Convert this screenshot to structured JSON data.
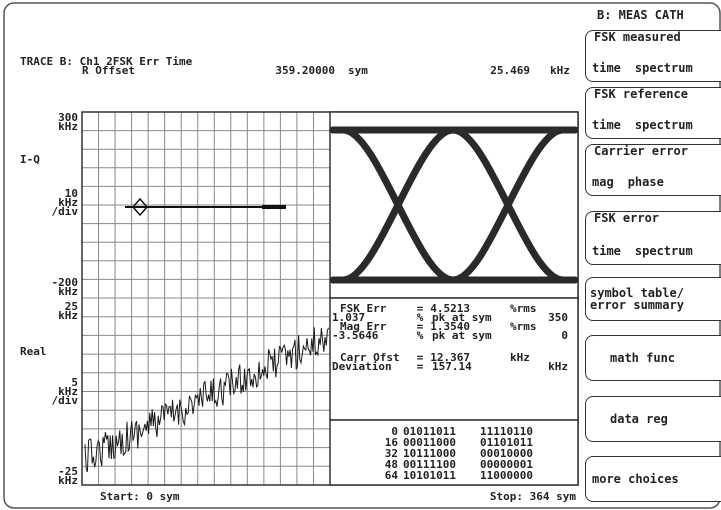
{
  "trace": {
    "header": "TRACE B: Ch1 2FSK Err Time",
    "marker_label": "R Offset",
    "marker_x": "359.20000",
    "marker_x_unit": "sym",
    "marker_y": "25.469",
    "marker_y_unit": "kHz"
  },
  "upper_axis": {
    "top": "300",
    "top_unit": "kHz",
    "name": "I-Q",
    "scale": "10",
    "scale_unit": "kHz",
    "scale_per": "/div",
    "bottom": "-200",
    "bottom_unit": "kHz"
  },
  "lower_axis": {
    "top": "25",
    "top_unit": "kHz",
    "name": "Real",
    "scale": "5",
    "scale_unit": "kHz",
    "scale_per": "/div",
    "bottom": "-25",
    "bottom_unit": "kHz"
  },
  "footer": {
    "start": "Start: 0 sym",
    "stop": "Stop: 364 sym"
  },
  "summary": [
    [
      "FSK Err",
      "=",
      "4.5213",
      "%rms"
    ],
    [
      "1.037",
      "%",
      "pk at sym",
      "350"
    ],
    [
      "Mag Err",
      "=",
      "1.3540",
      "%rms"
    ],
    [
      "-3.5646",
      "%",
      "pk at sym",
      "0"
    ],
    [
      "Carr Ofst",
      "=",
      "12.367",
      "kHz"
    ],
    [
      "Deviation",
      "=",
      "157.14",
      "kHz"
    ]
  ],
  "symbols": [
    [
      "0",
      "01011011",
      "11110110"
    ],
    [
      "16",
      "00011000",
      "01101011"
    ],
    [
      "32",
      "10111000",
      "00010000"
    ],
    [
      "48",
      "00111100",
      "00000001"
    ],
    [
      "64",
      "10101011",
      "11000000"
    ]
  ],
  "softkeys": {
    "title": "B: MEAS CATH",
    "keys": [
      {
        "label": "FSK measured",
        "options": [
          "time",
          "spectrum"
        ]
      },
      {
        "label": "FSK reference",
        "options": [
          "time",
          "spectrum"
        ]
      },
      {
        "label": "Carrier error",
        "options": [
          "mag",
          "phase"
        ]
      },
      {
        "label": "FSK error",
        "options": [
          "time",
          "spectrum"
        ]
      },
      {
        "label": "symbol table/",
        "options": [
          "error summary"
        ]
      },
      {
        "label": "math func",
        "options": []
      },
      {
        "label": "data reg",
        "options": []
      },
      {
        "label": "more choices",
        "options": []
      }
    ]
  }
}
